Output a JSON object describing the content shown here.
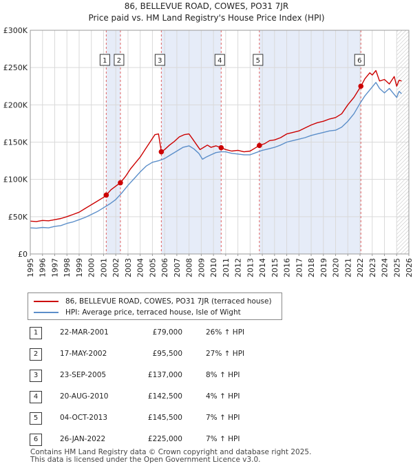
{
  "chart_data": {
    "type": "line",
    "title": "86, BELLEVUE ROAD, COWES, PO31 7JR",
    "subtitle": "Price paid vs. HM Land Registry's House Price Index (HPI)",
    "xlim": [
      1995,
      2026
    ],
    "ylim": [
      0,
      300000
    ],
    "y_ticks": [
      0,
      50000,
      100000,
      150000,
      200000,
      250000,
      300000
    ],
    "y_tick_labels": [
      "£0",
      "£50K",
      "£100K",
      "£150K",
      "£200K",
      "£250K",
      "£300K"
    ],
    "x_ticks": [
      1995,
      1996,
      1997,
      1998,
      1999,
      2000,
      2001,
      2002,
      2003,
      2004,
      2005,
      2006,
      2007,
      2008,
      2009,
      2010,
      2011,
      2012,
      2013,
      2014,
      2015,
      2016,
      2017,
      2018,
      2019,
      2020,
      2021,
      2022,
      2023,
      2024,
      2025,
      2026
    ],
    "x_tick_labels": [
      "1995",
      "1996",
      "1997",
      "1998",
      "1999",
      "2000",
      "2001",
      "2002",
      "2003",
      "2004",
      "2005",
      "2006",
      "2007",
      "2008",
      "2009",
      "2010",
      "2011",
      "2012",
      "2013",
      "2014",
      "2015",
      "2016",
      "2017",
      "2018",
      "2019",
      "2020",
      "2021",
      "2022",
      "2023",
      "2024",
      "2025",
      "2026"
    ],
    "grid": true,
    "series": [
      {
        "name": "86, BELLEVUE ROAD, COWES, PO31 7JR (terraced house)",
        "color": "#cc0000",
        "x": [
          1995.0,
          1995.5,
          1996.0,
          1996.5,
          1997.0,
          1997.5,
          1998.0,
          1998.5,
          1999.0,
          1999.5,
          2000.0,
          2000.5,
          2001.0,
          2001.22,
          2001.6,
          2002.0,
          2002.38,
          2002.8,
          2003.2,
          2003.6,
          2004.0,
          2004.4,
          2004.8,
          2005.2,
          2005.5,
          2005.73,
          2006.0,
          2006.4,
          2006.8,
          2007.2,
          2007.6,
          2008.0,
          2008.3,
          2008.6,
          2008.9,
          2009.2,
          2009.5,
          2009.8,
          2010.2,
          2010.63,
          2011.0,
          2011.5,
          2012.0,
          2012.5,
          2013.0,
          2013.4,
          2013.76,
          2014.2,
          2014.6,
          2015.0,
          2015.5,
          2016.0,
          2016.5,
          2017.0,
          2017.5,
          2018.0,
          2018.5,
          2019.0,
          2019.5,
          2020.0,
          2020.5,
          2021.0,
          2021.5,
          2022.07,
          2022.4,
          2022.8,
          2023.0,
          2023.3,
          2023.6,
          2024.0,
          2024.4,
          2024.8,
          2025.0,
          2025.2,
          2025.4
        ],
        "values": [
          44000,
          43500,
          45000,
          44500,
          46000,
          47500,
          50000,
          53000,
          56000,
          61000,
          66000,
          71000,
          76000,
          79000,
          86000,
          91000,
          95500,
          104000,
          114000,
          122000,
          130000,
          140000,
          150000,
          160000,
          161000,
          137000,
          140000,
          146000,
          151000,
          157000,
          160000,
          161000,
          154000,
          147000,
          140000,
          143000,
          146000,
          143000,
          145000,
          142500,
          140000,
          138000,
          139000,
          137000,
          138000,
          142000,
          145500,
          148000,
          152000,
          153000,
          156000,
          161000,
          163000,
          165000,
          169000,
          173000,
          176000,
          178000,
          181000,
          183000,
          188000,
          200000,
          210000,
          225000,
          235000,
          243000,
          240000,
          246000,
          232000,
          234000,
          228000,
          238000,
          225000,
          233000,
          232000
        ]
      },
      {
        "name": "HPI: Average price, terraced house, Isle of Wight",
        "color": "#5b8ec9",
        "x": [
          1995.0,
          1995.5,
          1996.0,
          1996.5,
          1997.0,
          1997.5,
          1998.0,
          1998.5,
          1999.0,
          1999.5,
          2000.0,
          2000.5,
          2001.0,
          2001.5,
          2002.0,
          2002.5,
          2003.0,
          2003.5,
          2004.0,
          2004.5,
          2005.0,
          2005.5,
          2006.0,
          2006.5,
          2007.0,
          2007.5,
          2008.0,
          2008.4,
          2008.8,
          2009.1,
          2009.4,
          2009.8,
          2010.2,
          2010.6,
          2011.0,
          2011.5,
          2012.0,
          2012.5,
          2013.0,
          2013.5,
          2014.0,
          2014.5,
          2015.0,
          2015.5,
          2016.0,
          2016.5,
          2017.0,
          2017.5,
          2018.0,
          2018.5,
          2019.0,
          2019.5,
          2020.0,
          2020.5,
          2021.0,
          2021.5,
          2022.0,
          2022.4,
          2022.8,
          2023.0,
          2023.3,
          2023.6,
          2024.0,
          2024.4,
          2024.8,
          2025.0,
          2025.2,
          2025.4
        ],
        "values": [
          35000,
          34500,
          35500,
          35000,
          37000,
          38000,
          41000,
          43000,
          46000,
          49000,
          53000,
          57000,
          62000,
          67000,
          73000,
          82000,
          92000,
          101000,
          110000,
          118000,
          123000,
          125000,
          128000,
          133000,
          138000,
          143000,
          145000,
          141000,
          135000,
          127000,
          130000,
          133000,
          136000,
          137000,
          137000,
          135000,
          134000,
          133000,
          133000,
          136000,
          139000,
          141000,
          143000,
          146000,
          150000,
          152000,
          154000,
          156000,
          159000,
          161000,
          163000,
          165000,
          166000,
          170000,
          178000,
          188000,
          202000,
          212000,
          220000,
          224000,
          230000,
          222000,
          216000,
          222000,
          214000,
          210000,
          218000,
          215000
        ]
      }
    ],
    "sales": [
      {
        "label": "1",
        "x": 2001.22,
        "value": 79000
      },
      {
        "label": "2",
        "x": 2002.38,
        "value": 95500
      },
      {
        "label": "3",
        "x": 2005.73,
        "value": 137000
      },
      {
        "label": "4",
        "x": 2010.63,
        "value": 142500
      },
      {
        "label": "5",
        "x": 2013.76,
        "value": 145500
      },
      {
        "label": "6",
        "x": 2022.07,
        "value": 225000
      }
    ],
    "shaded_ranges": [
      [
        2001.22,
        2002.38
      ],
      [
        2005.73,
        2010.63
      ],
      [
        2013.76,
        2022.07
      ]
    ],
    "hatched_from": 2025.0
  },
  "legend": {
    "property": "86, BELLEVUE ROAD, COWES, PO31 7JR (terraced house)",
    "hpi": "HPI: Average price, terraced house, Isle of Wight"
  },
  "sales_table": [
    {
      "num": "1",
      "date": "22-MAR-2001",
      "price": "£79,000",
      "hpi": "26% ↑ HPI"
    },
    {
      "num": "2",
      "date": "17-MAY-2002",
      "price": "£95,500",
      "hpi": "27% ↑ HPI"
    },
    {
      "num": "3",
      "date": "23-SEP-2005",
      "price": "£137,000",
      "hpi": "8% ↑ HPI"
    },
    {
      "num": "4",
      "date": "20-AUG-2010",
      "price": "£142,500",
      "hpi": "4% ↑ HPI"
    },
    {
      "num": "5",
      "date": "04-OCT-2013",
      "price": "£145,500",
      "hpi": "7% ↑ HPI"
    },
    {
      "num": "6",
      "date": "26-JAN-2022",
      "price": "£225,000",
      "hpi": "7% ↑ HPI"
    }
  ],
  "footer": {
    "line1": "Contains HM Land Registry data © Crown copyright and database right 2025.",
    "line2": "This data is licensed under the Open Government Licence v3.0."
  }
}
